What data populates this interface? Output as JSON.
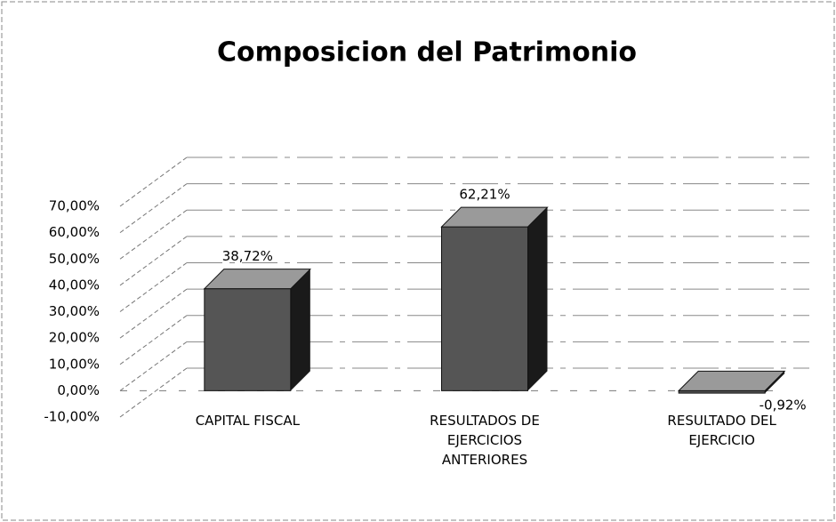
{
  "chart_data": {
    "type": "bar3d",
    "title": "Composicion del Patrimonio",
    "categories": [
      "CAPITAL FISCAL",
      "RESULTADOS DE EJERCICIOS ANTERIORES",
      "RESULTADO DEL EJERCICIO"
    ],
    "values": [
      38.72,
      62.21,
      -0.92
    ],
    "value_labels": [
      "38,72%",
      "62,21%",
      "-0,92%"
    ],
    "color": "#555555",
    "ylim": [
      -10,
      70
    ],
    "yticks": [
      {
        "value": -10,
        "label": "-10,00%"
      },
      {
        "value": 0,
        "label": "0,00%"
      },
      {
        "value": 10,
        "label": "10,00%"
      },
      {
        "value": 20,
        "label": "20,00%"
      },
      {
        "value": 30,
        "label": "30,00%"
      },
      {
        "value": 40,
        "label": "40,00%"
      },
      {
        "value": 50,
        "label": "50,00%"
      },
      {
        "value": 60,
        "label": "60,00%"
      },
      {
        "value": 70,
        "label": "70,00%"
      }
    ],
    "grid": true
  }
}
